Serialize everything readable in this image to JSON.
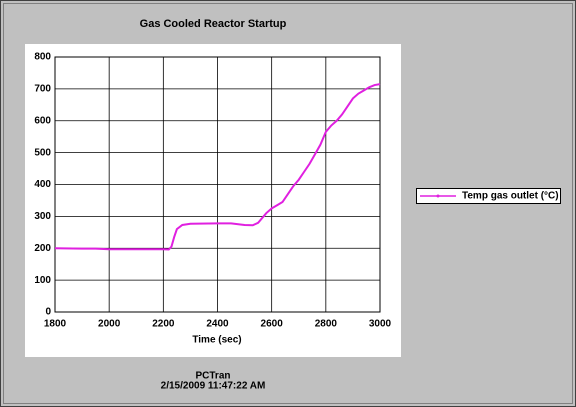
{
  "chart_data": {
    "type": "line",
    "title": "Gas Cooled Reactor Startup",
    "x_label": "Time (sec)",
    "x": [
      1800,
      1900,
      1950,
      2000,
      2100,
      2200,
      2220,
      2230,
      2240,
      2250,
      2270,
      2300,
      2400,
      2450,
      2500,
      2530,
      2550,
      2580,
      2600,
      2620,
      2640,
      2660,
      2680,
      2700,
      2720,
      2740,
      2760,
      2780,
      2800,
      2820,
      2840,
      2860,
      2880,
      2900,
      2920,
      2940,
      2960,
      2980,
      3000
    ],
    "series": [
      {
        "name": "Temp gas outlet (°C)",
        "color": "#e020e0",
        "values": [
          200,
          199,
          199,
          197,
          197,
          197,
          196,
          205,
          235,
          260,
          273,
          277,
          278,
          278,
          273,
          272,
          280,
          310,
          325,
          335,
          345,
          370,
          395,
          415,
          440,
          465,
          495,
          525,
          565,
          585,
          600,
          620,
          645,
          670,
          685,
          695,
          705,
          712,
          715
        ]
      }
    ],
    "xlim": [
      1800,
      3000
    ],
    "xticks": [
      1800,
      2000,
      2200,
      2400,
      2600,
      2800,
      3000
    ],
    "ylim": [
      0,
      800
    ],
    "yticks": [
      0,
      100,
      200,
      300,
      400,
      500,
      600,
      700,
      800
    ],
    "grid": true
  },
  "footer": {
    "app": "PCTran",
    "timestamp": "2/15/2009 11:47:22 AM"
  }
}
